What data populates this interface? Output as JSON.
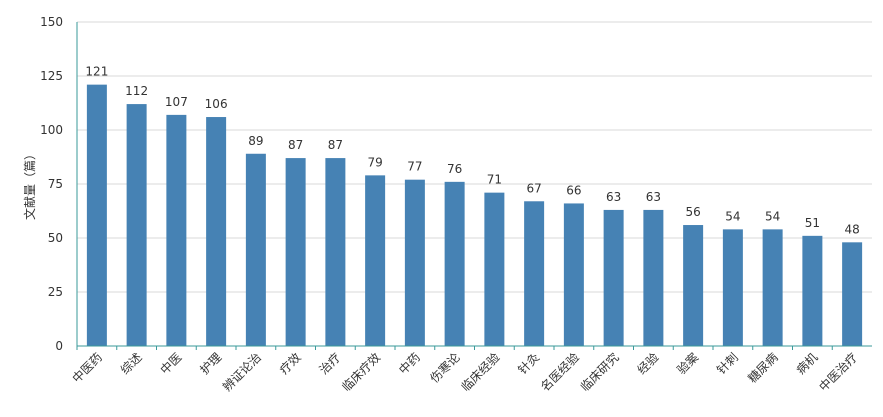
{
  "chart_data": {
    "type": "bar",
    "ylabel": "文献量（篇）",
    "xlabel": "",
    "ylim": [
      0,
      150
    ],
    "yticks": [
      0,
      25,
      50,
      75,
      100,
      125,
      150
    ],
    "grid": true,
    "bar_color": "#4682b4",
    "grid_color": "#d9d9d9",
    "axis_color": "#3a9a9a",
    "label_color": "#333333",
    "categories": [
      "中医药",
      "综述",
      "中医",
      "护理",
      "辨证论治",
      "疗效",
      "治疗",
      "临床疗效",
      "中药",
      "伤寒论",
      "临床经验",
      "针灸",
      "名医经验",
      "临床研究",
      "经验",
      "验案",
      "针刺",
      "糖尿病",
      "病机",
      "中医治疗"
    ],
    "values": [
      121,
      112,
      107,
      106,
      89,
      87,
      87,
      79,
      77,
      76,
      71,
      67,
      66,
      63,
      63,
      56,
      54,
      54,
      51,
      48
    ]
  }
}
